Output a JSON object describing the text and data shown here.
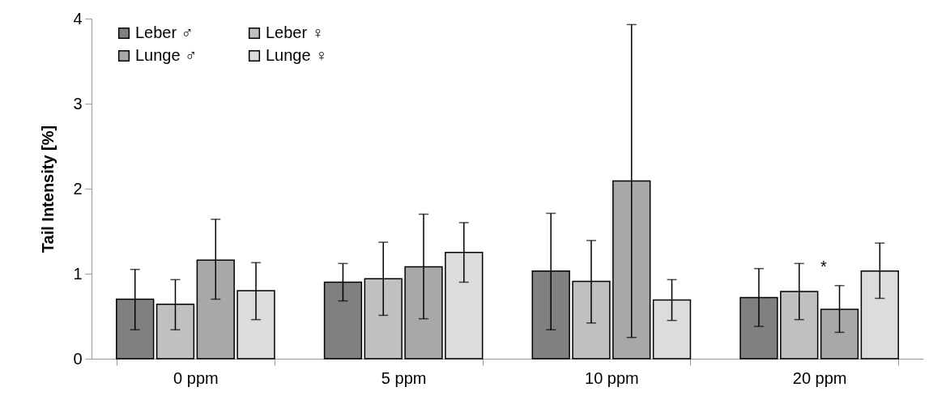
{
  "chart_data": {
    "type": "bar",
    "ylabel": "Tail Intensity [%]",
    "categories": [
      "0 ppm",
      "5 ppm",
      "10 ppm",
      "20 ppm"
    ],
    "series": [
      {
        "name": "Leber ♂",
        "color": "#808080",
        "values": [
          0.7,
          0.9,
          1.03,
          0.72
        ],
        "errors": [
          [
            0.34,
            1.05
          ],
          [
            0.68,
            1.12
          ],
          [
            0.34,
            1.71
          ],
          [
            0.38,
            1.06
          ]
        ]
      },
      {
        "name": "Leber ♀",
        "color": "#c0c0c0",
        "values": [
          0.64,
          0.94,
          0.91,
          0.79
        ],
        "errors": [
          [
            0.34,
            0.93
          ],
          [
            0.51,
            1.37
          ],
          [
            0.42,
            1.39
          ],
          [
            0.46,
            1.12
          ]
        ]
      },
      {
        "name": "Lunge ♂",
        "color": "#a8a8a8",
        "values": [
          1.16,
          1.08,
          2.09,
          0.58
        ],
        "errors": [
          [
            0.7,
            1.64
          ],
          [
            0.47,
            1.7
          ],
          [
            0.25,
            3.93
          ],
          [
            0.31,
            0.86
          ]
        ]
      },
      {
        "name": "Lunge ♀",
        "color": "#dcdcdc",
        "values": [
          0.8,
          1.25,
          0.69,
          1.03
        ],
        "errors": [
          [
            0.46,
            1.13
          ],
          [
            0.9,
            1.6
          ],
          [
            0.45,
            0.93
          ],
          [
            0.71,
            1.36
          ]
        ]
      }
    ],
    "ylim": [
      0,
      4
    ],
    "yticks": [
      0,
      1,
      2,
      3,
      4
    ],
    "grid": false,
    "legend": "top left",
    "annotations": [
      "*"
    ]
  }
}
